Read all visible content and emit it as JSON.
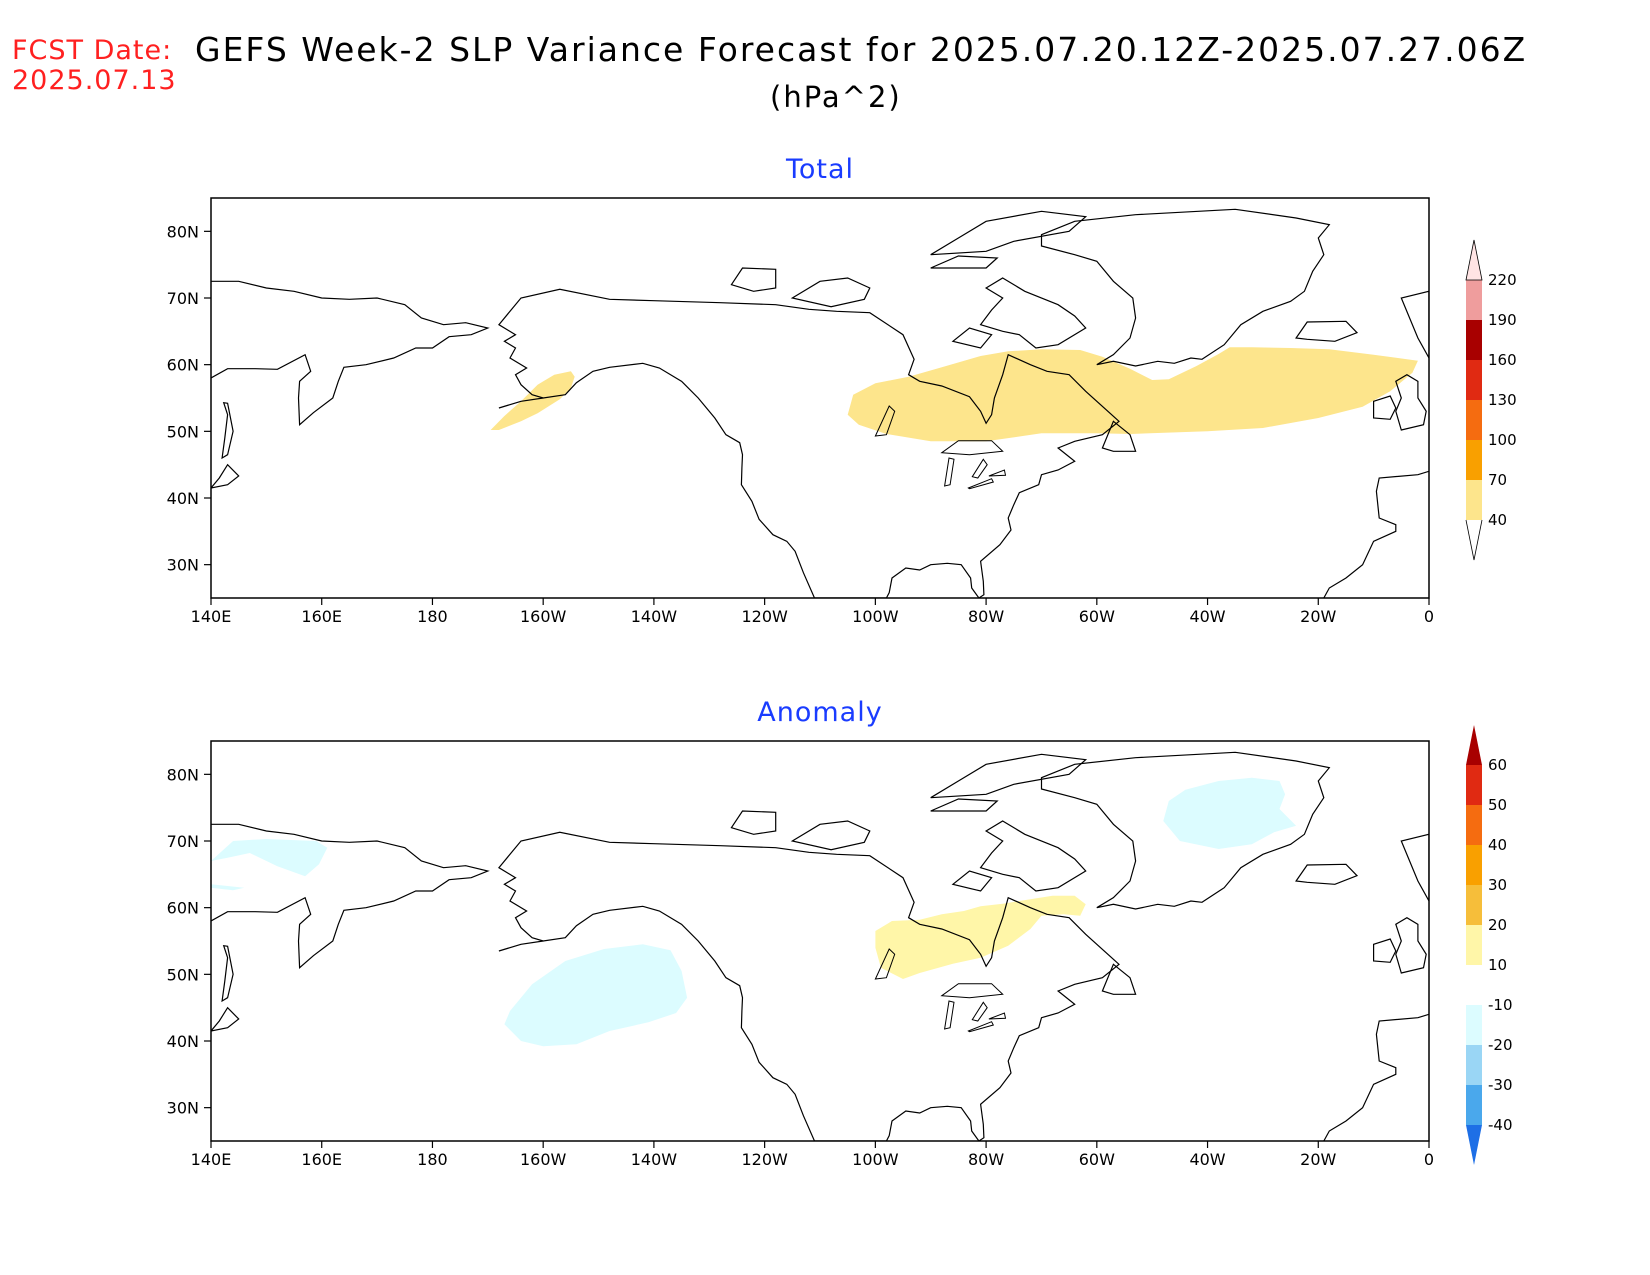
{
  "header": {
    "fcst_label": "FCST Date:",
    "fcst_date": "2025.07.13",
    "title": "GEFS Week-2 SLP Variance Forecast for 2025.07.20.12Z-2025.07.27.06Z",
    "units": "(hPa^2)"
  },
  "map": {
    "lon_ticks": [
      "140E",
      "160E",
      "180",
      "160W",
      "140W",
      "120W",
      "100W",
      "80W",
      "60W",
      "40W",
      "20W",
      "0"
    ],
    "lat_ticks": [
      "80N",
      "70N",
      "60N",
      "50N",
      "40N",
      "30N"
    ],
    "lon_range": [
      140,
      360
    ],
    "lat_range": [
      25,
      85
    ]
  },
  "panels": [
    {
      "title": "Total",
      "colorbar": {
        "labels": [
          "40",
          "70",
          "100",
          "130",
          "160",
          "190",
          "220"
        ],
        "colors": [
          "#fde58c",
          "#f9a000",
          "#f56c10",
          "#e02a12",
          "#a80000",
          "#ef9d9d",
          "#ffe4e4"
        ]
      },
      "regions": [
        {
          "level": "40-70",
          "color": "#fde58c",
          "desc": "Aleutians"
        },
        {
          "level": "40-70",
          "color": "#fde58c",
          "desc": "Canada to North Atlantic"
        }
      ]
    },
    {
      "title": "Anomaly",
      "colorbar": {
        "labels": [
          "60",
          "50",
          "40",
          "30",
          "20",
          "10",
          "-10",
          "-20",
          "-30",
          "-40"
        ],
        "colors": [
          "#a80000",
          "#e02a12",
          "#f56c10",
          "#f9a000",
          "#f6be3a",
          "#fff6a8",
          "#ffffff",
          "#dcfcff",
          "#9ad6f5",
          "#4aa8ec",
          "#1e6fe6"
        ]
      },
      "regions": [
        {
          "level": "10-20",
          "color": "#fff6a8",
          "desc": "Hudson Bay region"
        },
        {
          "level": "-10 to -20",
          "color": "#dcfcff",
          "desc": "NE Pacific"
        },
        {
          "level": "-10 to -20",
          "color": "#dcfcff",
          "desc": "Greenland"
        },
        {
          "level": "-10 to -20",
          "color": "#dcfcff",
          "desc": "Siberia"
        }
      ]
    }
  ]
}
